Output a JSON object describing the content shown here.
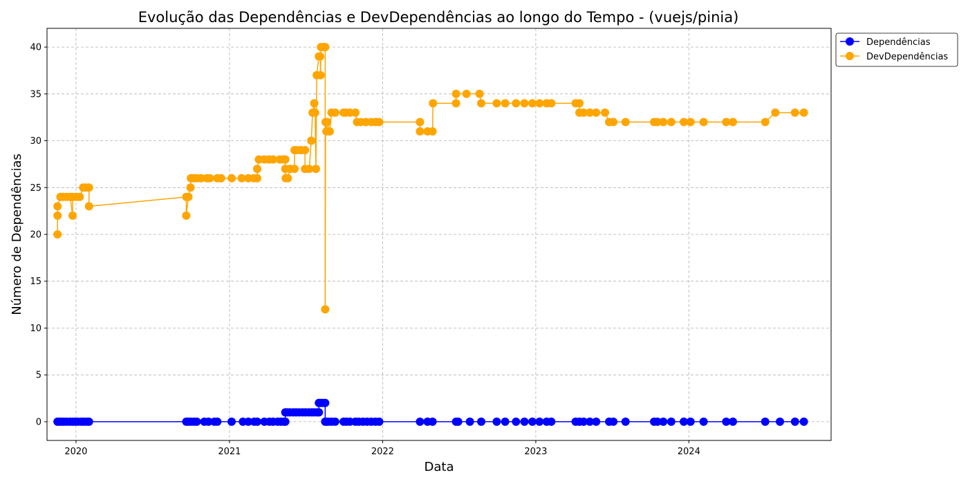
{
  "chart_data": {
    "type": "line",
    "title": "Evolução das Dependências e DevDependências ao longo do Tempo - (vuejs/pinia)",
    "xlabel": "Data",
    "ylabel": "Número de Dependências",
    "xlim": [
      "2019-10-24",
      "2024-12-05"
    ],
    "ylim": [
      -2,
      42
    ],
    "xticks": [
      {
        "label": "2020",
        "date": "2020-01-01"
      },
      {
        "label": "2021",
        "date": "2021-01-01"
      },
      {
        "label": "2022",
        "date": "2022-01-01"
      },
      {
        "label": "2023",
        "date": "2023-01-01"
      },
      {
        "label": "2024",
        "date": "2024-01-01"
      }
    ],
    "yticks": [
      0,
      5,
      10,
      15,
      20,
      25,
      30,
      35,
      40
    ],
    "grid": true,
    "legend_position": "outside-top-right",
    "series": [
      {
        "name": "Dependências",
        "color": "#0000ff",
        "points": [
          [
            "2019-11-18",
            0
          ],
          [
            "2019-11-22",
            0
          ],
          [
            "2019-11-27",
            0
          ],
          [
            "2019-12-03",
            0
          ],
          [
            "2019-12-10",
            0
          ],
          [
            "2019-12-18",
            0
          ],
          [
            "2019-12-24",
            0
          ],
          [
            "2019-12-30",
            0
          ],
          [
            "2020-01-06",
            0
          ],
          [
            "2020-01-14",
            0
          ],
          [
            "2020-01-20",
            0
          ],
          [
            "2020-01-27",
            0
          ],
          [
            "2020-02-01",
            0
          ],
          [
            "2020-09-20",
            0
          ],
          [
            "2020-09-25",
            0
          ],
          [
            "2020-10-01",
            0
          ],
          [
            "2020-10-08",
            0
          ],
          [
            "2020-10-15",
            0
          ],
          [
            "2020-11-02",
            0
          ],
          [
            "2020-11-12",
            0
          ],
          [
            "2020-11-26",
            0
          ],
          [
            "2020-12-03",
            0
          ],
          [
            "2021-01-06",
            0
          ],
          [
            "2021-02-02",
            0
          ],
          [
            "2021-02-15",
            0
          ],
          [
            "2021-03-01",
            0
          ],
          [
            "2021-03-08",
            0
          ],
          [
            "2021-03-25",
            0
          ],
          [
            "2021-04-06",
            0
          ],
          [
            "2021-04-15",
            0
          ],
          [
            "2021-04-26",
            0
          ],
          [
            "2021-05-03",
            0
          ],
          [
            "2021-05-10",
            0
          ],
          [
            "2021-05-14",
            0
          ],
          [
            "2021-05-14",
            1
          ],
          [
            "2021-05-19",
            1
          ],
          [
            "2021-05-25",
            1
          ],
          [
            "2021-06-02",
            1
          ],
          [
            "2021-06-09",
            1
          ],
          [
            "2021-06-16",
            1
          ],
          [
            "2021-06-24",
            1
          ],
          [
            "2021-07-01",
            1
          ],
          [
            "2021-07-09",
            1
          ],
          [
            "2021-07-16",
            1
          ],
          [
            "2021-07-22",
            1
          ],
          [
            "2021-07-29",
            1
          ],
          [
            "2021-08-02",
            1
          ],
          [
            "2021-08-02",
            2
          ],
          [
            "2021-08-07",
            2
          ],
          [
            "2021-08-12",
            2
          ],
          [
            "2021-08-17",
            2
          ],
          [
            "2021-08-17",
            0
          ],
          [
            "2021-08-20",
            0
          ],
          [
            "2021-08-24",
            0
          ],
          [
            "2021-09-01",
            0
          ],
          [
            "2021-09-10",
            0
          ],
          [
            "2021-09-30",
            0
          ],
          [
            "2021-10-07",
            0
          ],
          [
            "2021-10-15",
            0
          ],
          [
            "2021-10-28",
            0
          ],
          [
            "2021-11-05",
            0
          ],
          [
            "2021-11-15",
            0
          ],
          [
            "2021-11-25",
            0
          ],
          [
            "2021-12-05",
            0
          ],
          [
            "2021-12-15",
            0
          ],
          [
            "2021-12-24",
            0
          ],
          [
            "2022-03-31",
            0
          ],
          [
            "2022-04-18",
            0
          ],
          [
            "2022-04-30",
            0
          ],
          [
            "2022-06-25",
            0
          ],
          [
            "2022-06-30",
            0
          ],
          [
            "2022-07-28",
            0
          ],
          [
            "2022-08-24",
            0
          ],
          [
            "2022-09-30",
            0
          ],
          [
            "2022-10-20",
            0
          ],
          [
            "2022-11-15",
            0
          ],
          [
            "2022-12-05",
            0
          ],
          [
            "2022-12-24",
            0
          ],
          [
            "2023-01-10",
            0
          ],
          [
            "2023-01-27",
            0
          ],
          [
            "2023-02-07",
            0
          ],
          [
            "2023-04-06",
            0
          ],
          [
            "2023-04-15",
            0
          ],
          [
            "2023-04-25",
            0
          ],
          [
            "2023-05-10",
            0
          ],
          [
            "2023-05-25",
            0
          ],
          [
            "2023-06-25",
            0
          ],
          [
            "2023-07-05",
            0
          ],
          [
            "2023-08-03",
            0
          ],
          [
            "2023-10-10",
            0
          ],
          [
            "2023-10-18",
            0
          ],
          [
            "2023-11-01",
            0
          ],
          [
            "2023-11-20",
            0
          ],
          [
            "2023-12-20",
            0
          ],
          [
            "2024-01-05",
            0
          ],
          [
            "2024-02-05",
            0
          ],
          [
            "2024-03-30",
            0
          ],
          [
            "2024-04-15",
            0
          ],
          [
            "2024-07-01",
            0
          ],
          [
            "2024-08-05",
            0
          ],
          [
            "2024-09-10",
            0
          ],
          [
            "2024-10-01",
            0
          ]
        ]
      },
      {
        "name": "DevDependências",
        "color": "#ffa500",
        "points": [
          [
            "2019-11-18",
            20
          ],
          [
            "2019-11-18",
            22
          ],
          [
            "2019-11-18",
            23
          ],
          [
            "2019-11-25",
            24
          ],
          [
            "2019-12-01",
            24
          ],
          [
            "2019-12-10",
            24
          ],
          [
            "2019-12-18",
            24
          ],
          [
            "2019-12-24",
            22
          ],
          [
            "2019-12-24",
            24
          ],
          [
            "2020-01-02",
            24
          ],
          [
            "2020-01-10",
            24
          ],
          [
            "2020-01-18",
            25
          ],
          [
            "2020-01-25",
            25
          ],
          [
            "2020-02-01",
            25
          ],
          [
            "2020-02-01",
            23
          ],
          [
            "2020-09-20",
            24
          ],
          [
            "2020-09-20",
            22
          ],
          [
            "2020-09-25",
            24
          ],
          [
            "2020-09-30",
            25
          ],
          [
            "2020-10-01",
            26
          ],
          [
            "2020-10-08",
            26
          ],
          [
            "2020-10-15",
            26
          ],
          [
            "2020-10-25",
            26
          ],
          [
            "2020-11-08",
            26
          ],
          [
            "2020-11-15",
            26
          ],
          [
            "2020-12-03",
            26
          ],
          [
            "2020-12-12",
            26
          ],
          [
            "2021-01-06",
            26
          ],
          [
            "2021-01-30",
            26
          ],
          [
            "2021-02-15",
            26
          ],
          [
            "2021-02-28",
            26
          ],
          [
            "2021-03-08",
            26
          ],
          [
            "2021-03-08",
            27
          ],
          [
            "2021-03-12",
            28
          ],
          [
            "2021-03-25",
            28
          ],
          [
            "2021-04-05",
            28
          ],
          [
            "2021-04-15",
            28
          ],
          [
            "2021-05-01",
            28
          ],
          [
            "2021-05-10",
            28
          ],
          [
            "2021-05-14",
            28
          ],
          [
            "2021-05-14",
            27
          ],
          [
            "2021-05-15",
            26
          ],
          [
            "2021-05-20",
            26
          ],
          [
            "2021-05-25",
            27
          ],
          [
            "2021-06-05",
            27
          ],
          [
            "2021-06-05",
            29
          ],
          [
            "2021-06-10",
            29
          ],
          [
            "2021-06-20",
            29
          ],
          [
            "2021-06-30",
            29
          ],
          [
            "2021-06-30",
            27
          ],
          [
            "2021-07-10",
            27
          ],
          [
            "2021-07-15",
            30
          ],
          [
            "2021-07-18",
            33
          ],
          [
            "2021-07-22",
            34
          ],
          [
            "2021-07-24",
            33
          ],
          [
            "2021-07-26",
            27
          ],
          [
            "2021-07-28",
            37
          ],
          [
            "2021-08-02",
            39
          ],
          [
            "2021-08-05",
            39
          ],
          [
            "2021-08-06",
            37
          ],
          [
            "2021-08-07",
            40
          ],
          [
            "2021-08-12",
            40
          ],
          [
            "2021-08-15",
            40
          ],
          [
            "2021-08-17",
            40
          ],
          [
            "2021-08-17",
            12
          ],
          [
            "2021-08-18",
            32
          ],
          [
            "2021-08-20",
            31
          ],
          [
            "2021-08-22",
            32
          ],
          [
            "2021-08-28",
            31
          ],
          [
            "2021-09-01",
            33
          ],
          [
            "2021-09-10",
            33
          ],
          [
            "2021-09-30",
            33
          ],
          [
            "2021-10-05",
            33
          ],
          [
            "2021-10-15",
            33
          ],
          [
            "2021-10-28",
            33
          ],
          [
            "2021-11-01",
            32
          ],
          [
            "2021-11-10",
            32
          ],
          [
            "2021-11-22",
            32
          ],
          [
            "2021-12-05",
            32
          ],
          [
            "2021-12-15",
            32
          ],
          [
            "2021-12-24",
            32
          ],
          [
            "2022-03-31",
            32
          ],
          [
            "2022-03-31",
            31
          ],
          [
            "2022-04-18",
            31
          ],
          [
            "2022-04-30",
            31
          ],
          [
            "2022-05-01",
            34
          ],
          [
            "2022-06-25",
            34
          ],
          [
            "2022-06-25",
            35
          ],
          [
            "2022-07-20",
            35
          ],
          [
            "2022-08-20",
            35
          ],
          [
            "2022-08-24",
            34
          ],
          [
            "2022-09-30",
            34
          ],
          [
            "2022-10-20",
            34
          ],
          [
            "2022-11-15",
            34
          ],
          [
            "2022-12-05",
            34
          ],
          [
            "2022-12-24",
            34
          ],
          [
            "2023-01-10",
            34
          ],
          [
            "2023-01-27",
            34
          ],
          [
            "2023-02-07",
            34
          ],
          [
            "2023-04-06",
            34
          ],
          [
            "2023-04-15",
            34
          ],
          [
            "2023-04-15",
            33
          ],
          [
            "2023-04-25",
            33
          ],
          [
            "2023-05-10",
            33
          ],
          [
            "2023-05-25",
            33
          ],
          [
            "2023-06-15",
            33
          ],
          [
            "2023-06-25",
            32
          ],
          [
            "2023-07-05",
            32
          ],
          [
            "2023-08-03",
            32
          ],
          [
            "2023-10-10",
            32
          ],
          [
            "2023-10-18",
            32
          ],
          [
            "2023-11-01",
            32
          ],
          [
            "2023-11-20",
            32
          ],
          [
            "2023-12-20",
            32
          ],
          [
            "2024-01-05",
            32
          ],
          [
            "2024-02-05",
            32
          ],
          [
            "2024-03-30",
            32
          ],
          [
            "2024-04-15",
            32
          ],
          [
            "2024-07-01",
            32
          ],
          [
            "2024-07-25",
            33
          ],
          [
            "2024-09-10",
            33
          ],
          [
            "2024-10-01",
            33
          ]
        ]
      }
    ]
  }
}
